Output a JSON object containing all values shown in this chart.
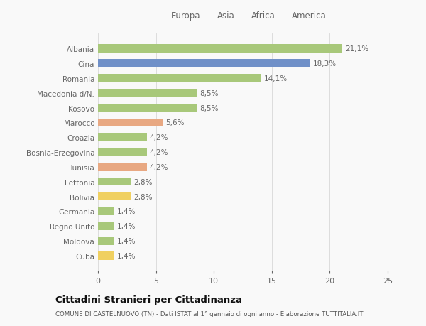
{
  "countries": [
    "Albania",
    "Cina",
    "Romania",
    "Macedonia d/N.",
    "Kosovo",
    "Marocco",
    "Croazia",
    "Bosnia-Erzegovina",
    "Tunisia",
    "Lettonia",
    "Bolivia",
    "Germania",
    "Regno Unito",
    "Moldova",
    "Cuba"
  ],
  "values": [
    21.1,
    18.3,
    14.1,
    8.5,
    8.5,
    5.6,
    4.2,
    4.2,
    4.2,
    2.8,
    2.8,
    1.4,
    1.4,
    1.4,
    1.4
  ],
  "labels": [
    "21,1%",
    "18,3%",
    "14,1%",
    "8,5%",
    "8,5%",
    "5,6%",
    "4,2%",
    "4,2%",
    "4,2%",
    "2,8%",
    "2,8%",
    "1,4%",
    "1,4%",
    "1,4%",
    "1,4%"
  ],
  "continents": [
    "Europa",
    "Asia",
    "Europa",
    "Europa",
    "Europa",
    "Africa",
    "Europa",
    "Europa",
    "Africa",
    "Europa",
    "America",
    "Europa",
    "Europa",
    "Europa",
    "America"
  ],
  "colors": {
    "Europa": "#a8c87a",
    "Asia": "#7090c8",
    "Africa": "#e8a882",
    "America": "#f0d060"
  },
  "xlim": [
    0,
    25
  ],
  "xticks": [
    0,
    5,
    10,
    15,
    20,
    25
  ],
  "title": "Cittadini Stranieri per Cittadinanza",
  "subtitle": "COMUNE DI CASTELNUOVO (TN) - Dati ISTAT al 1° gennaio di ogni anno - Elaborazione TUTTITALIA.IT",
  "background_color": "#f9f9f9",
  "grid_color": "#dddddd",
  "text_color": "#666666",
  "title_color": "#111111",
  "subtitle_color": "#555555",
  "bar_height": 0.55
}
